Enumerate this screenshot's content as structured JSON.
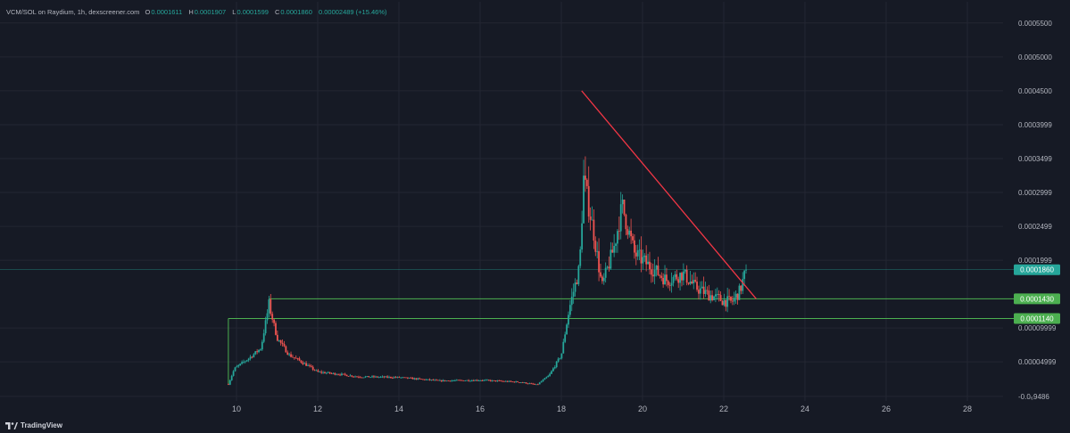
{
  "header": {
    "symbol": "VCM/SOL on Raydium, 1h, dexscreener.com",
    "ohlc": [
      {
        "label": "O",
        "value": "0.0001611"
      },
      {
        "label": "H",
        "value": "0.0001907"
      },
      {
        "label": "L",
        "value": "0.0001599"
      },
      {
        "label": "C",
        "value": "0.0001860"
      }
    ],
    "change": "0.00002489 (+15.46%)"
  },
  "footer": {
    "brand": "TradingView"
  },
  "colors": {
    "background": "#161a25",
    "grid": "#232632",
    "up": "#26a69a",
    "down": "#ef5350",
    "trendline": "#f23645",
    "support": "#4caf50",
    "price_line": "#26a69a",
    "text": "#b2b5be"
  },
  "chart_data": {
    "type": "candlestick",
    "x_ticks": [
      "10",
      "12",
      "14",
      "16",
      "18",
      "20",
      "22",
      "24",
      "26",
      "28"
    ],
    "y_ticks": [
      "0.0005500",
      "0.0005000",
      "0.0004500",
      "0.0003999",
      "0.0003499",
      "0.0002999",
      "0.0002499",
      "0.0001999",
      "0.00009999",
      "0.00004999",
      "-0.0₆9486"
    ],
    "ylim": [
      -5e-06,
      0.000555
    ],
    "grid": true,
    "last_price": "0.0001860",
    "horizontal_lines": [
      {
        "value": 0.000143,
        "label": "0.0001430"
      },
      {
        "value": 0.000114,
        "label": "0.0001140"
      }
    ],
    "trendline": {
      "from": [
        18.5,
        0.00045
      ],
      "to": [
        22.8,
        0.000143
      ]
    },
    "support_line_start_day": 9.8,
    "keypoints": [
      [
        9.8,
        1.7e-05
      ],
      [
        9.95,
        4e-05
      ],
      [
        10.3,
        5.5e-05
      ],
      [
        10.6,
        7e-05
      ],
      [
        10.8,
        0.000135
      ],
      [
        11.0,
        8.5e-05
      ],
      [
        11.3,
        6e-05
      ],
      [
        11.6,
        5e-05
      ],
      [
        12.0,
        3.5e-05
      ],
      [
        12.5,
        3.2e-05
      ],
      [
        13.0,
        2.8e-05
      ],
      [
        14.0,
        2.7e-05
      ],
      [
        15.0,
        2.2e-05
      ],
      [
        16.0,
        2.3e-05
      ],
      [
        17.0,
        2e-05
      ],
      [
        17.4,
        1.6e-05
      ],
      [
        17.7,
        3e-05
      ],
      [
        18.0,
        6e-05
      ],
      [
        18.2,
        0.00013
      ],
      [
        18.45,
        0.00019
      ],
      [
        18.55,
        0.00032
      ],
      [
        18.8,
        0.00024
      ],
      [
        19.0,
        0.00016
      ],
      [
        19.3,
        0.00022
      ],
      [
        19.5,
        0.00028
      ],
      [
        19.8,
        0.00021
      ],
      [
        20.2,
        0.00019
      ],
      [
        20.6,
        0.00017
      ],
      [
        21.0,
        0.00018
      ],
      [
        21.3,
        0.00016
      ],
      [
        21.6,
        0.00015
      ],
      [
        22.0,
        0.00014
      ],
      [
        22.2,
        0.000138
      ],
      [
        22.4,
        0.000155
      ],
      [
        22.55,
        0.000186
      ]
    ]
  }
}
